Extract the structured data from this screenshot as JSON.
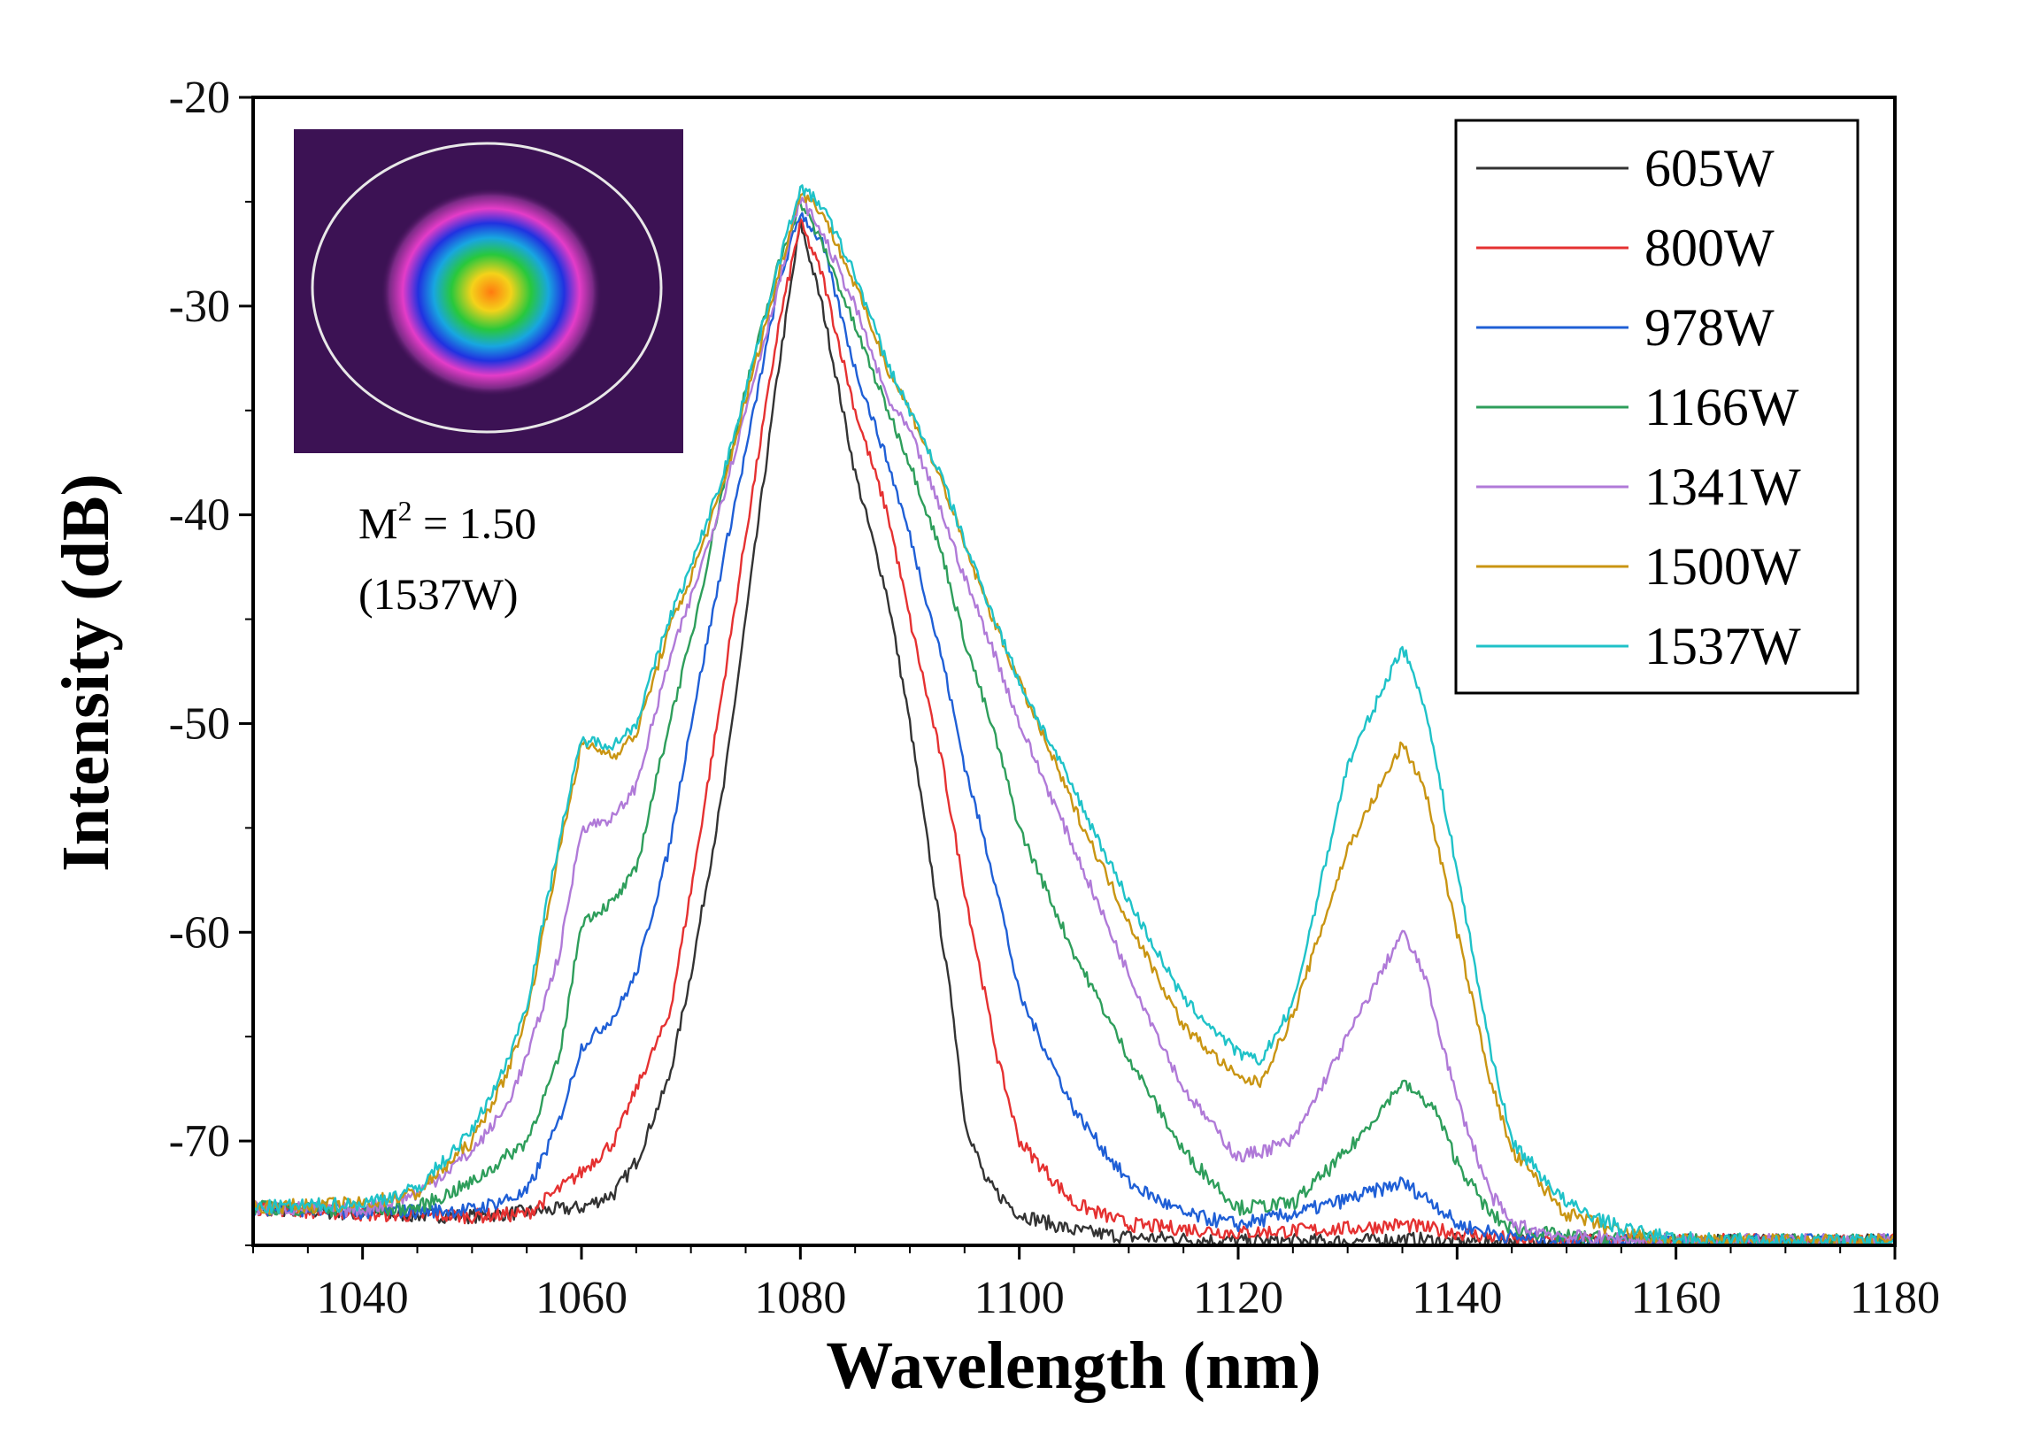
{
  "chart_data": {
    "type": "line",
    "xlabel": "Wavelength (nm)",
    "ylabel": "Intensity (dB)",
    "xlim": [
      1030,
      1180
    ],
    "ylim": [
      -75,
      -20
    ],
    "xticks": [
      1040,
      1060,
      1080,
      1100,
      1120,
      1140,
      1160,
      1180
    ],
    "yticks": [
      -20,
      -30,
      -40,
      -50,
      -60,
      -70
    ],
    "legend_position": "top-right",
    "grid": false,
    "series": [
      {
        "name": "605W",
        "color": "#333333",
        "x": [
          1030,
          1040,
          1050,
          1055,
          1060,
          1063,
          1065,
          1068,
          1070,
          1073,
          1075,
          1078,
          1080,
          1082,
          1085,
          1088,
          1090,
          1092,
          1094,
          1095,
          1097,
          1100,
          1105,
          1110,
          1120,
          1130,
          1135,
          1140,
          1150,
          1160,
          1170,
          1180
        ],
        "y": [
          -73.2,
          -73.5,
          -73.6,
          -73.4,
          -73.2,
          -72.5,
          -71,
          -67,
          -62,
          -53,
          -45,
          -33,
          -26,
          -30,
          -38,
          -44,
          -50,
          -57,
          -64,
          -69,
          -72,
          -73.5,
          -74.3,
          -74.6,
          -74.8,
          -74.8,
          -74.7,
          -74.8,
          -74.8,
          -74.8,
          -74.8,
          -74.8
        ]
      },
      {
        "name": "800W",
        "color": "#e53131",
        "x": [
          1030,
          1040,
          1050,
          1055,
          1060,
          1063,
          1065,
          1068,
          1070,
          1073,
          1075,
          1078,
          1080,
          1082,
          1085,
          1088,
          1090,
          1093,
          1095,
          1098,
          1100,
          1105,
          1110,
          1120,
          1130,
          1135,
          1140,
          1145,
          1150,
          1160,
          1170,
          1180
        ],
        "y": [
          -73.2,
          -73.5,
          -73.6,
          -73.5,
          -71.5,
          -70,
          -67.5,
          -64,
          -58,
          -48,
          -41,
          -31,
          -26,
          -28.5,
          -35,
          -40,
          -45,
          -52,
          -58,
          -66,
          -70,
          -73,
          -74,
          -74.4,
          -74.2,
          -74,
          -74.4,
          -74.7,
          -74.8,
          -74.8,
          -74.8,
          -74.8
        ]
      },
      {
        "name": "978W",
        "color": "#1f5fd6",
        "x": [
          1030,
          1040,
          1050,
          1055,
          1058,
          1060,
          1063,
          1065,
          1068,
          1070,
          1073,
          1075,
          1078,
          1080,
          1082,
          1085,
          1088,
          1090,
          1093,
          1095,
          1098,
          1100,
          1105,
          1110,
          1115,
          1120,
          1125,
          1130,
          1135,
          1138,
          1140,
          1145,
          1150,
          1160,
          1170,
          1180
        ],
        "y": [
          -73.2,
          -73.4,
          -73.3,
          -72.5,
          -69,
          -65.5,
          -64,
          -62,
          -56,
          -50,
          -42,
          -37,
          -29,
          -25.5,
          -27,
          -33,
          -37.5,
          -41,
          -47,
          -52,
          -58,
          -63,
          -68.5,
          -72,
          -73.5,
          -74,
          -73.5,
          -72.8,
          -72,
          -73,
          -74,
          -74.6,
          -74.8,
          -74.8,
          -74.8,
          -74.8
        ]
      },
      {
        "name": "1166W",
        "color": "#2e9e5b",
        "x": [
          1030,
          1040,
          1045,
          1050,
          1055,
          1058,
          1060,
          1063,
          1065,
          1068,
          1070,
          1073,
          1075,
          1078,
          1080,
          1082,
          1085,
          1088,
          1090,
          1093,
          1095,
          1098,
          1100,
          1105,
          1110,
          1115,
          1120,
          1125,
          1130,
          1135,
          1138,
          1140,
          1143,
          1145,
          1150,
          1160,
          1170,
          1180
        ],
        "y": [
          -73.2,
          -73.3,
          -73.2,
          -72,
          -70,
          -66,
          -59.5,
          -58.5,
          -57,
          -50,
          -46,
          -38.5,
          -34,
          -28,
          -25,
          -27,
          -31,
          -35,
          -37.5,
          -42,
          -46,
          -51,
          -55,
          -61,
          -66,
          -70.5,
          -73.2,
          -73,
          -70.5,
          -67.2,
          -68.5,
          -71,
          -73.5,
          -74.2,
          -74.6,
          -74.8,
          -74.8,
          -74.8
        ]
      },
      {
        "name": "1341W",
        "color": "#b07ad8",
        "x": [
          1030,
          1040,
          1045,
          1050,
          1053,
          1055,
          1058,
          1060,
          1063,
          1065,
          1068,
          1070,
          1073,
          1075,
          1078,
          1080,
          1082,
          1085,
          1088,
          1090,
          1093,
          1095,
          1098,
          1100,
          1105,
          1110,
          1115,
          1120,
          1125,
          1130,
          1135,
          1137,
          1140,
          1143,
          1145,
          1150,
          1160,
          1170,
          1180
        ],
        "y": [
          -73.2,
          -73.3,
          -72.5,
          -70.5,
          -68.5,
          -66,
          -61,
          -55,
          -54.5,
          -53,
          -47,
          -44,
          -39,
          -35,
          -29,
          -24.8,
          -26.5,
          -30,
          -34.5,
          -36,
          -40,
          -43,
          -47,
          -50,
          -56,
          -62,
          -67.5,
          -70.8,
          -70,
          -65,
          -60,
          -62,
          -68,
          -72.5,
          -74,
          -74.6,
          -74.8,
          -74.8,
          -74.8
        ]
      },
      {
        "name": "1500W",
        "color": "#c99513",
        "x": [
          1030,
          1040,
          1045,
          1050,
          1053,
          1055,
          1058,
          1060,
          1063,
          1065,
          1068,
          1070,
          1073,
          1075,
          1078,
          1080,
          1082,
          1085,
          1088,
          1090,
          1093,
          1095,
          1098,
          1100,
          1105,
          1110,
          1115,
          1120,
          1122,
          1125,
          1130,
          1135,
          1137,
          1140,
          1143,
          1145,
          1148,
          1150,
          1155,
          1160,
          1170,
          1180
        ],
        "y": [
          -73.2,
          -73,
          -72.5,
          -70,
          -67,
          -64,
          -56,
          -51,
          -51.5,
          -50.5,
          -45.5,
          -43,
          -38.5,
          -34.5,
          -28.5,
          -24.5,
          -25.5,
          -29,
          -33,
          -35,
          -38.5,
          -41.5,
          -45.5,
          -48,
          -54,
          -59.5,
          -64.5,
          -67,
          -67.2,
          -64,
          -56,
          -51,
          -53,
          -60,
          -67,
          -70.5,
          -72.3,
          -73.5,
          -74.4,
          -74.8,
          -74.8,
          -74.8
        ]
      },
      {
        "name": "1537W",
        "color": "#1fc2c8",
        "x": [
          1030,
          1040,
          1045,
          1050,
          1053,
          1055,
          1058,
          1060,
          1063,
          1065,
          1068,
          1070,
          1073,
          1075,
          1078,
          1080,
          1082,
          1085,
          1088,
          1090,
          1093,
          1095,
          1098,
          1100,
          1105,
          1110,
          1115,
          1120,
          1122,
          1125,
          1130,
          1135,
          1137,
          1140,
          1143,
          1145,
          1148,
          1150,
          1155,
          1160,
          1170,
          1180
        ],
        "y": [
          -73.2,
          -73,
          -72.3,
          -69.5,
          -66.5,
          -63.5,
          -55.5,
          -50.8,
          -51,
          -50,
          -45,
          -42.5,
          -38,
          -34,
          -28,
          -24.3,
          -25.2,
          -28.5,
          -32.8,
          -35,
          -38.3,
          -41.3,
          -45.3,
          -48,
          -53.2,
          -58.5,
          -63.2,
          -65.8,
          -66.2,
          -63.5,
          -52,
          -46.3,
          -49,
          -57,
          -65.5,
          -70,
          -71.8,
          -73,
          -74.2,
          -74.7,
          -74.8,
          -74.8
        ]
      }
    ],
    "inset": {
      "label_line1": "M",
      "label_sup": "2",
      "label_rest": " = 1.50",
      "label_line2": "(1537W)"
    }
  }
}
